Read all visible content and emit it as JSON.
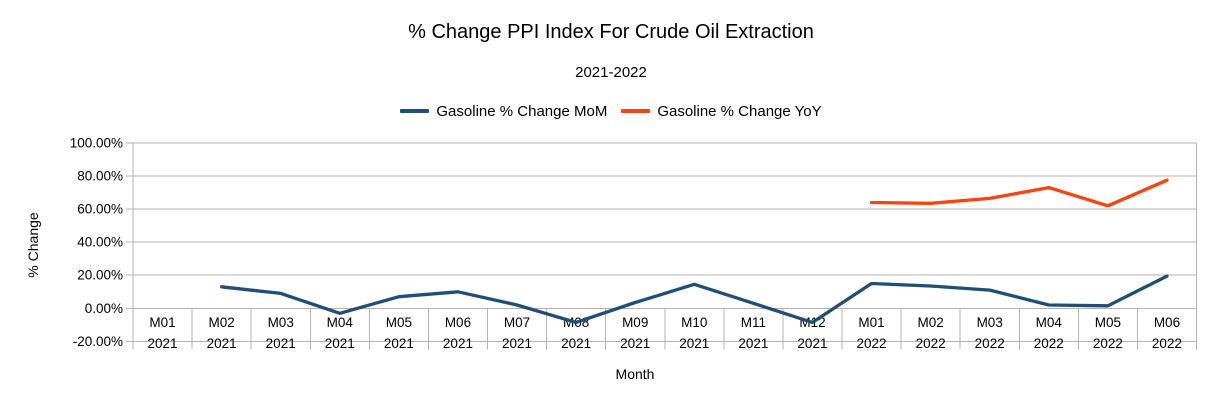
{
  "chart_data": {
    "type": "line",
    "title": "% Change PPI Index For Crude Oil Extraction",
    "subtitle": "2021-2022",
    "xlabel": "Month",
    "ylabel": "% Change",
    "ylim": [
      -20,
      100
    ],
    "y_ticks": [
      100,
      80,
      60,
      40,
      20,
      0,
      -20
    ],
    "y_tick_labels": [
      "100.00%",
      "80.00%",
      "60.00%",
      "40.00%",
      "20.00%",
      "0.00%",
      "-20.00%"
    ],
    "grid": true,
    "legend_position": "top",
    "categories": [
      "M01 2021",
      "M02 2021",
      "M03 2021",
      "M04 2021",
      "M05 2021",
      "M06 2021",
      "M07 2021",
      "M08 2021",
      "M09 2021",
      "M10 2021",
      "M11 2021",
      "M12 2021",
      "M01 2022",
      "M02 2022",
      "M03 2022",
      "M04 2022",
      "M05 2022",
      "M06 2022"
    ],
    "series": [
      {
        "name": "Gasoline % Change MoM",
        "color": "#1f4e79",
        "values": [
          null,
          13,
          9,
          -3,
          7,
          10,
          2,
          -8.5,
          3.5,
          14.5,
          3,
          -8.5,
          15,
          13.5,
          11,
          2,
          1.5,
          19.5
        ]
      },
      {
        "name": "Gasoline % Change YoY",
        "color": "#ff420e",
        "values": [
          null,
          null,
          null,
          null,
          null,
          null,
          null,
          null,
          null,
          null,
          null,
          null,
          64,
          63.5,
          66.5,
          73,
          62,
          77.5
        ]
      }
    ],
    "colors": {
      "grid": "#b3b3b3",
      "axis": "#b3b3b3",
      "text": "#000000",
      "background": "#ffffff"
    }
  }
}
